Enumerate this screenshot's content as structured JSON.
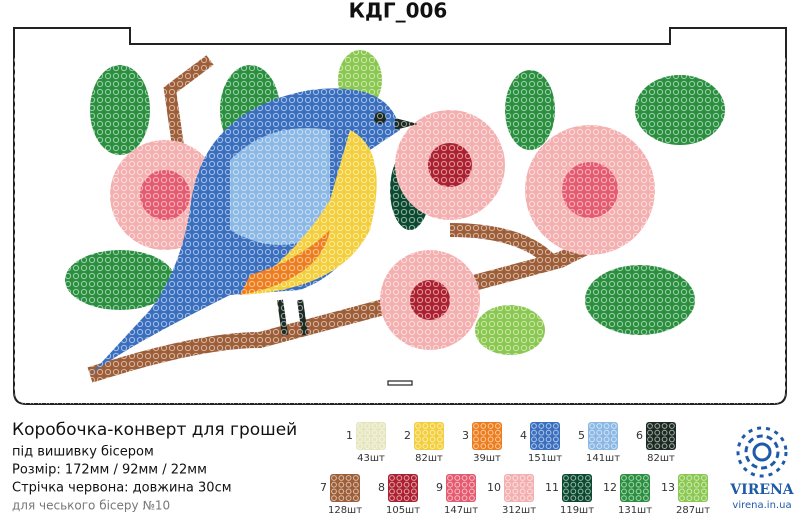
{
  "header": {
    "title": "КДГ_006"
  },
  "description": {
    "name": "Коробочка-конверт для грошей",
    "lines": [
      "під вишивку бісером",
      "Розмір: 172мм / 92мм / 22мм",
      "Стрічка червона: довжина 30см",
      "для чеського бісеру №10"
    ]
  },
  "legend": [
    {
      "number": "1",
      "count": "43шт",
      "color": "#e6e6bf"
    },
    {
      "number": "2",
      "count": "82шт",
      "color": "#f4cf3c"
    },
    {
      "number": "3",
      "count": "39шт",
      "color": "#ee7d1e"
    },
    {
      "number": "4",
      "count": "151шт",
      "color": "#3a6fbf"
    },
    {
      "number": "5",
      "count": "141шт",
      "color": "#8cb8e6"
    },
    {
      "number": "6",
      "count": "82шт",
      "color": "#1b2a22"
    },
    {
      "number": "7",
      "count": "128шт",
      "color": "#9e5e38"
    },
    {
      "number": "8",
      "count": "105шт",
      "color": "#ad2030"
    },
    {
      "number": "9",
      "count": "147шт",
      "color": "#e65a70"
    },
    {
      "number": "10",
      "count": "312шт",
      "color": "#f4b0b0"
    },
    {
      "number": "11",
      "count": "119шт",
      "color": "#0b4a30"
    },
    {
      "number": "12",
      "count": "131шт",
      "color": "#2a9040"
    },
    {
      "number": "13",
      "count": "287шт",
      "color": "#8bc850"
    }
  ],
  "brand": {
    "name": "VIRENA",
    "site": "virena.in.ua"
  }
}
